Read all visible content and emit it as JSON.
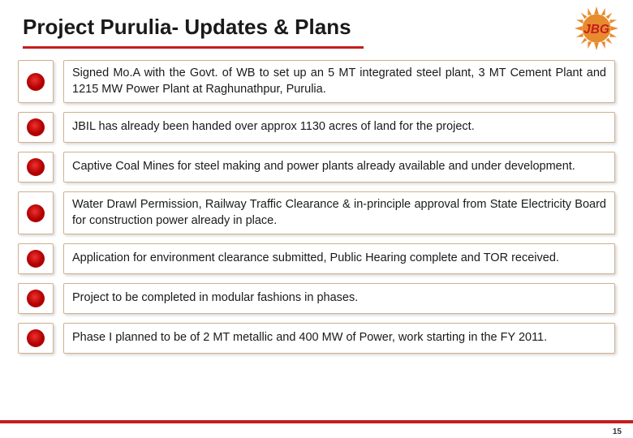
{
  "title": "Project Purulia- Updates & Plans",
  "accent_color": "#c41e1e",
  "bullet": {
    "outer_color": "#f03030",
    "inner_color": "#b00000",
    "outer_size": 22,
    "inner_size": 14
  },
  "items": [
    "Signed Mo.A with the Govt. of WB to set up an 5 MT integrated steel plant, 3 MT Cement Plant and 1215 MW Power Plant at Raghunathpur, Purulia.",
    "JBIL has already been handed over approx 1130 acres of land for the project.",
    "Captive Coal Mines for steel making and power plants already available and under development.",
    "Water Drawl Permission, Railway Traffic Clearance & in-principle approval from State Electricity Board for construction power already in place.",
    "Application for environment clearance submitted, Public Hearing complete and TOR received.",
    "Project to be completed in modular fashions in phases.",
    "Phase I planned to be of 2 MT metallic and 400 MW of Power, work starting in the FY 2011."
  ],
  "logo": {
    "text": "JBG",
    "sun_color": "#e88b2e",
    "text_color": "#c41e1e"
  },
  "page_number": "15"
}
